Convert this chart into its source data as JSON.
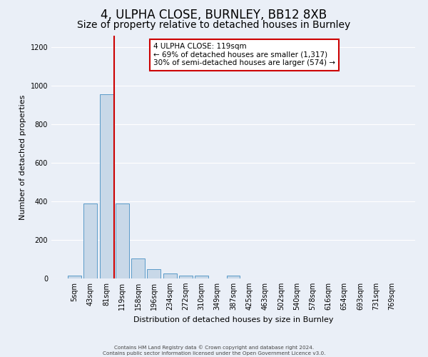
{
  "title": "4, ULPHA CLOSE, BURNLEY, BB12 8XB",
  "subtitle": "Size of property relative to detached houses in Burnley",
  "xlabel": "Distribution of detached houses by size in Burnley",
  "ylabel": "Number of detached properties",
  "categories": [
    "5sqm",
    "43sqm",
    "81sqm",
    "119sqm",
    "158sqm",
    "196sqm",
    "234sqm",
    "272sqm",
    "310sqm",
    "349sqm",
    "387sqm",
    "425sqm",
    "463sqm",
    "502sqm",
    "540sqm",
    "578sqm",
    "616sqm",
    "654sqm",
    "693sqm",
    "731sqm",
    "769sqm"
  ],
  "values": [
    15,
    390,
    955,
    390,
    105,
    50,
    25,
    15,
    15,
    0,
    15,
    0,
    0,
    0,
    0,
    0,
    0,
    0,
    0,
    0,
    0
  ],
  "bar_color": "#c8d8e8",
  "bar_edge_color": "#5a9ac8",
  "red_line_color": "#cc0000",
  "annotation_text": "4 ULPHA CLOSE: 119sqm\n← 69% of detached houses are smaller (1,317)\n30% of semi-detached houses are larger (574) →",
  "annotation_box_color": "#ffffff",
  "annotation_box_edge": "#cc0000",
  "footnote": "Contains HM Land Registry data © Crown copyright and database right 2024.\nContains public sector information licensed under the Open Government Licence v3.0.",
  "bg_color": "#eaeff7",
  "grid_color": "#ffffff",
  "ylim": [
    0,
    1260
  ],
  "yticks": [
    0,
    200,
    400,
    600,
    800,
    1000,
    1200
  ],
  "title_fontsize": 12,
  "subtitle_fontsize": 10,
  "ylabel_fontsize": 8,
  "xlabel_fontsize": 8,
  "tick_fontsize": 7,
  "annot_fontsize": 7.5
}
